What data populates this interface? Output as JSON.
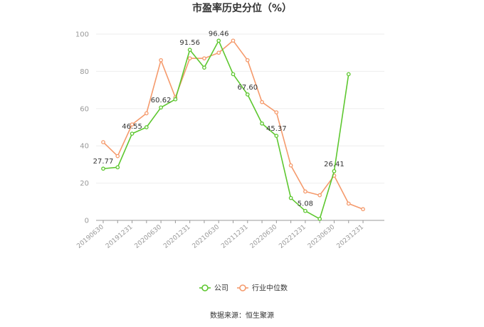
{
  "chart_data": {
    "type": "line",
    "title": "市盈率历史分位（%）",
    "xlabel": "",
    "ylabel": "",
    "ylim": [
      0,
      100
    ],
    "yticks": [
      0,
      20,
      40,
      60,
      80,
      100
    ],
    "grid": true,
    "legend_position": "bottom",
    "x": [
      "20190630",
      "20190930",
      "20191231",
      "20200331",
      "20200630",
      "20200930",
      "20201231",
      "20210331",
      "20210630",
      "20210930",
      "20211231",
      "20220331",
      "20220630",
      "20220930",
      "20221231",
      "20230331",
      "20230630",
      "20230930",
      "20231231"
    ],
    "x_tick_labels": [
      "20190630",
      "20191231",
      "20200630",
      "20201231",
      "20210630",
      "20211231",
      "20220630",
      "20221231",
      "20230630",
      "20231231"
    ],
    "series": [
      {
        "name": "公司",
        "color": "#5dc72f",
        "values": [
          27.77,
          28.5,
          46.55,
          50.0,
          60.62,
          65.0,
          91.56,
          82.0,
          96.46,
          78.5,
          67.6,
          52.0,
          45.37,
          12.0,
          5.08,
          0.8,
          26.41,
          78.5,
          null
        ]
      },
      {
        "name": "行业中位数",
        "color": "#f59a6c",
        "values": [
          42.0,
          34.5,
          51.5,
          57.5,
          86.0,
          66.0,
          87.0,
          87.0,
          90.0,
          96.5,
          86.0,
          63.5,
          58.0,
          29.5,
          15.5,
          13.5,
          24.0,
          9.0,
          6.0
        ]
      }
    ],
    "annotations": [
      {
        "series": 0,
        "index": 0,
        "text": "27.77"
      },
      {
        "series": 0,
        "index": 2,
        "text": "46.55"
      },
      {
        "series": 0,
        "index": 4,
        "text": "60.62"
      },
      {
        "series": 0,
        "index": 6,
        "text": "91.56"
      },
      {
        "series": 0,
        "index": 8,
        "text": "96.46"
      },
      {
        "series": 0,
        "index": 10,
        "text": "67.60"
      },
      {
        "series": 0,
        "index": 12,
        "text": "45.37"
      },
      {
        "series": 0,
        "index": 14,
        "text": "5.08"
      },
      {
        "series": 0,
        "index": 16,
        "text": "26.41"
      }
    ],
    "source": "数据来源：恒生聚源"
  }
}
